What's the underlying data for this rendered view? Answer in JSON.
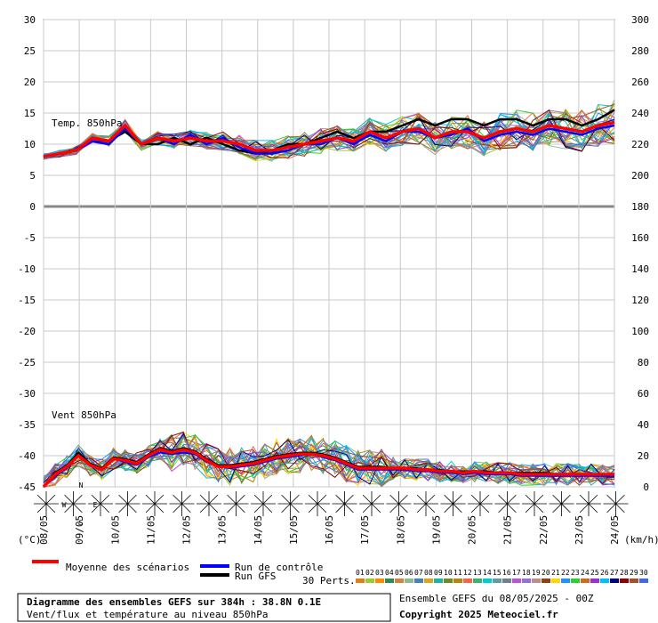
{
  "chart_data": {
    "type": "line",
    "title": "Diagramme des ensembles GEFS sur 384h : 38.8N 0.1E",
    "subtitle": "Vent/flux et température au niveau 850hPa",
    "run_info": "Ensemble GEFS du 08/05/2025 - 00Z",
    "copyright": "Copyright 2025 Meteociel.fr",
    "left_unit": "(°C)",
    "right_unit": "(km/h)",
    "panel_temp_label": "Temp. 850hPa",
    "panel_wind_label": "Vent 850hPa",
    "left_ticks": [
      30,
      25,
      20,
      15,
      10,
      5,
      0,
      -5,
      -10,
      -15,
      -20,
      -25,
      -30,
      -35,
      -40,
      -45
    ],
    "right_ticks": [
      300,
      280,
      260,
      240,
      220,
      200,
      180,
      160,
      140,
      120,
      100,
      80,
      60,
      40,
      20,
      0
    ],
    "dates": [
      "08/05",
      "09/05",
      "10/05",
      "11/05",
      "12/05",
      "13/05",
      "14/05",
      "15/05",
      "16/05",
      "17/05",
      "18/05",
      "19/05",
      "20/05",
      "21/05",
      "22/05",
      "23/05",
      "24/05"
    ],
    "legend": {
      "mean": "Moyenne des scénarios",
      "control": "Run de contrôle",
      "gfs": "Run GFS",
      "perts": "30 Perts."
    },
    "pert_ids": [
      "01",
      "02",
      "03",
      "04",
      "05",
      "06",
      "07",
      "08",
      "09",
      "10",
      "11",
      "12",
      "13",
      "14",
      "15",
      "16",
      "17",
      "18",
      "19",
      "20",
      "21",
      "22",
      "23",
      "24",
      "25",
      "26",
      "27",
      "28",
      "29",
      "30"
    ],
    "pert_colors": [
      "#e0801a",
      "#9acd32",
      "#ff8c00",
      "#2e8b57",
      "#cd853f",
      "#8fbc8f",
      "#4682b4",
      "#daa520",
      "#20b2aa",
      "#6b8e23",
      "#b8860b",
      "#ff6347",
      "#3cb371",
      "#00ced1",
      "#5f9ea0",
      "#708090",
      "#ba55d3",
      "#9370db",
      "#bc8f8f",
      "#8b4513",
      "#ffd700",
      "#1e90ff",
      "#32cd32",
      "#d2691e",
      "#9932cc",
      "#00bfff",
      "#000080",
      "#8b0000",
      "#a0522d",
      "#4169e1"
    ],
    "temp_mean": [
      8,
      8.5,
      9,
      11,
      10.5,
      13,
      10,
      11,
      10.5,
      11,
      10.5,
      10.5,
      10,
      9,
      9,
      9.5,
      10,
      10.5,
      11,
      10.5,
      12,
      11,
      12,
      12.5,
      11,
      12,
      12,
      11,
      12,
      12.5,
      12,
      13,
      12.5,
      12,
      13,
      13.5
    ],
    "temp_control": [
      8,
      8.5,
      9,
      10.5,
      10,
      12.5,
      10,
      11,
      10,
      11.5,
      10,
      11,
      9.5,
      8.5,
      8.5,
      9,
      10,
      10,
      11,
      10,
      11.5,
      10.5,
      12,
      12,
      11,
      11.5,
      12.5,
      10.5,
      11.5,
      12,
      11.5,
      12.5,
      12,
      11.5,
      12.5,
      13
    ],
    "temp_gfs": [
      8,
      8.5,
      9,
      11,
      10.5,
      12,
      10,
      10,
      11,
      10,
      11,
      10,
      9,
      8.5,
      9,
      10,
      10,
      11,
      12,
      11,
      12,
      12,
      13,
      14,
      13,
      14,
      14,
      13,
      14,
      14,
      13,
      14,
      14,
      13,
      14,
      15.5
    ],
    "wind_mean": [
      0,
      8,
      13,
      20,
      14,
      11,
      18,
      17,
      15,
      20,
      24,
      22,
      24,
      22,
      17,
      13,
      13,
      14,
      15,
      17,
      19,
      20,
      21,
      21,
      20,
      18,
      15,
      12,
      12,
      12,
      12,
      12,
      11,
      11,
      10,
      10,
      9,
      10,
      9,
      9,
      9,
      8,
      8,
      8,
      8,
      8,
      8,
      8,
      8,
      8
    ],
    "wind_control": [
      0,
      7,
      12,
      20,
      14,
      11,
      18,
      16,
      14,
      19,
      22,
      21,
      22,
      21,
      16,
      13,
      12,
      13,
      14,
      16,
      18,
      19,
      20,
      21,
      19,
      17,
      14,
      11,
      11,
      11,
      11,
      11,
      10,
      10,
      9,
      9,
      8,
      9,
      8,
      8,
      8,
      7,
      7,
      7,
      7,
      7,
      7,
      7,
      7,
      7
    ],
    "wind_gfs": [
      0,
      9,
      14,
      22,
      15,
      12,
      19,
      18,
      16,
      21,
      25,
      23,
      25,
      23,
      18,
      14,
      14,
      15,
      16,
      18,
      20,
      21,
      22,
      22,
      21,
      19,
      16,
      13,
      13,
      13,
      12,
      12,
      12,
      11,
      11,
      10,
      10,
      10,
      10,
      9,
      9,
      9,
      9,
      9,
      8,
      8,
      8,
      8,
      8,
      8
    ],
    "wind_directions_deg": [
      250,
      270,
      200,
      60,
      40,
      90,
      120,
      110,
      150,
      160,
      120,
      110,
      100,
      130,
      80,
      100,
      90,
      110,
      130,
      120,
      80,
      90
    ],
    "compass_labels": [
      "N",
      "S",
      "E",
      "W"
    ]
  }
}
